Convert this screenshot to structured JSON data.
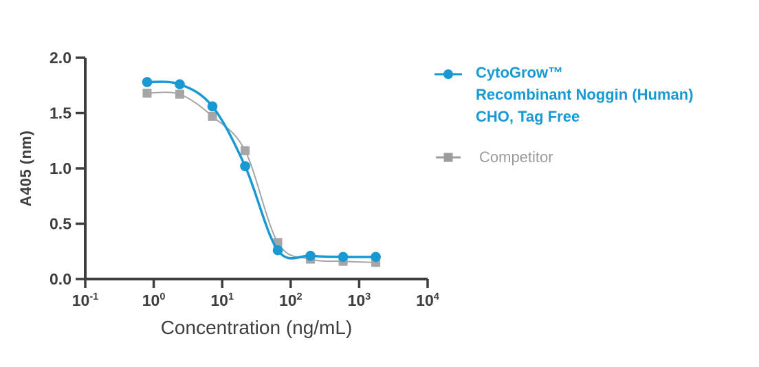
{
  "chart_data": {
    "type": "line",
    "title": "",
    "xlabel": "Concentration (ng/mL)",
    "ylabel": "A405 (nm)",
    "x_scale": "log10",
    "xlim_exponents": [
      -1,
      4
    ],
    "ylim": [
      0.0,
      2.0
    ],
    "grid": false,
    "legend_position": "right",
    "y_tick_labels": [
      "2.0",
      "1.5",
      "1.0",
      "0.5",
      "0.0"
    ],
    "y_tick_values": [
      2.0,
      1.5,
      1.0,
      0.5,
      0.0
    ],
    "x_tick_base": "10",
    "x_tick_exponents": [
      "-1",
      "0",
      "1",
      "2",
      "3",
      "4"
    ],
    "x": [
      0.8,
      2.4,
      7.2,
      21.6,
      64.8,
      194.4,
      583.2,
      1749.6
    ],
    "series": [
      {
        "name": "CytoGrow™ Recombinant Noggin (Human) CHO, Tag Free",
        "marker": "circle",
        "color": "#1899D3",
        "line_width": 3.5,
        "values": [
          1.78,
          1.76,
          1.56,
          1.02,
          0.26,
          0.21,
          0.2,
          0.2
        ]
      },
      {
        "name": "Competitor",
        "marker": "square",
        "color": "#A5A5A5",
        "line_width": 2,
        "values": [
          1.68,
          1.67,
          1.47,
          1.16,
          0.33,
          0.18,
          0.16,
          0.15
        ]
      }
    ]
  },
  "legend": {
    "items": [
      {
        "lines": [
          "CytoGrow™",
          "Recombinant Noggin (Human)",
          "CHO, Tag Free"
        ],
        "marker": "circle",
        "color": "#1899D3"
      },
      {
        "lines": [
          "Competitor"
        ],
        "marker": "square",
        "color": "#9C9C9C"
      }
    ]
  },
  "colors": {
    "axis": "#3E3E3E",
    "background": "#FFFFFF",
    "cytogrow_blue": "#1899D3",
    "competitor_gray": "#A5A5A5"
  }
}
